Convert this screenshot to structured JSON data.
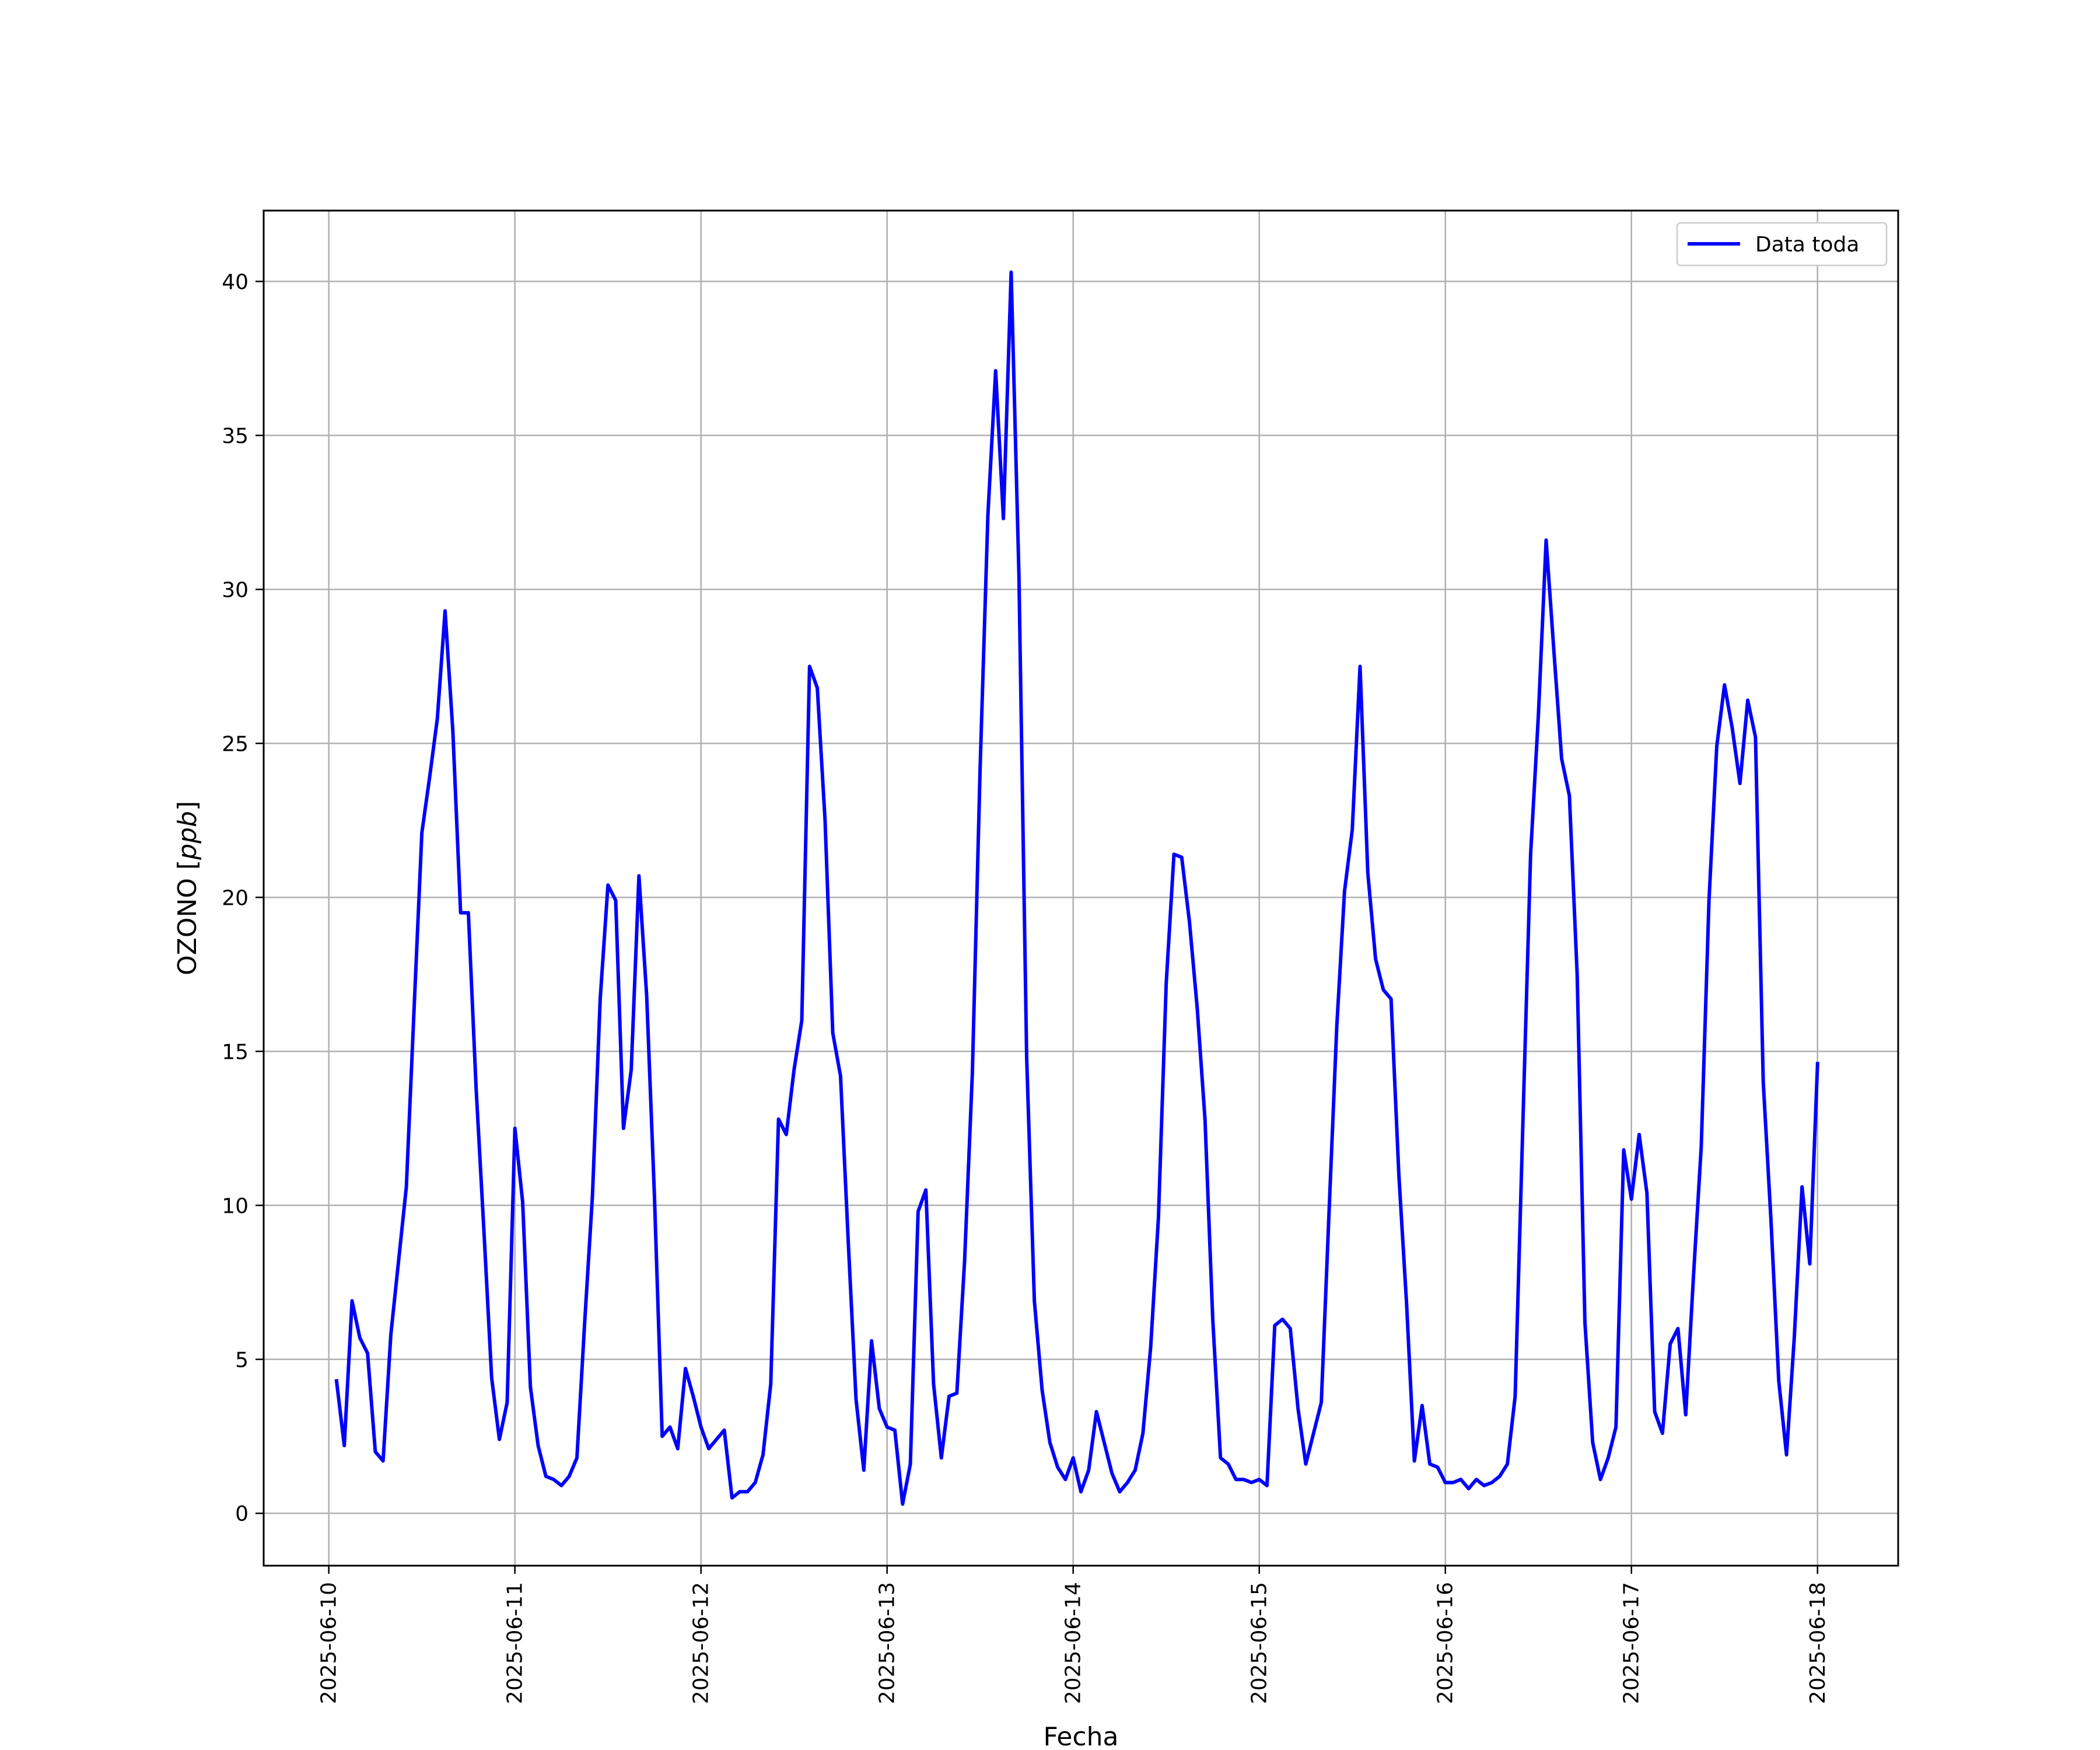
{
  "chart_data": {
    "type": "line",
    "title": "",
    "xlabel": "Fecha",
    "ylabel": "OZONO [ppb]",
    "ylabel_parts": {
      "main": "OZONO [",
      "unit": "ppb",
      "end": "]"
    },
    "x_tick_labels": [
      "2025-06-10",
      "2025-06-11",
      "2025-06-12",
      "2025-06-13",
      "2025-06-14",
      "2025-06-15",
      "2025-06-16",
      "2025-06-17",
      "2025-06-18"
    ],
    "y_ticks": [
      0,
      5,
      10,
      15,
      20,
      25,
      30,
      35,
      40
    ],
    "xlim": [
      "2025-06-09T15:36",
      "2025-06-18T10:24"
    ],
    "ylim": [
      -1.7,
      42.3
    ],
    "grid": true,
    "legend_position": "top-right",
    "series": [
      {
        "name": "Data toda",
        "color": "#0000ff",
        "x": [
          "2025-06-10T01:00",
          "2025-06-10T02:00",
          "2025-06-10T03:00",
          "2025-06-10T04:00",
          "2025-06-10T05:00",
          "2025-06-10T06:00",
          "2025-06-10T07:00",
          "2025-06-10T08:00",
          "2025-06-10T09:00",
          "2025-06-10T10:00",
          "2025-06-10T11:00",
          "2025-06-10T12:00",
          "2025-06-10T13:00",
          "2025-06-10T14:00",
          "2025-06-10T15:00",
          "2025-06-10T16:00",
          "2025-06-10T17:00",
          "2025-06-10T18:00",
          "2025-06-10T19:00",
          "2025-06-10T20:00",
          "2025-06-10T21:00",
          "2025-06-10T22:00",
          "2025-06-10T23:00",
          "2025-06-11T00:00",
          "2025-06-11T01:00",
          "2025-06-11T02:00",
          "2025-06-11T03:00",
          "2025-06-11T04:00",
          "2025-06-11T05:00",
          "2025-06-11T06:00",
          "2025-06-11T07:00",
          "2025-06-11T08:00",
          "2025-06-11T09:00",
          "2025-06-11T10:00",
          "2025-06-11T11:00",
          "2025-06-11T12:00",
          "2025-06-11T13:00",
          "2025-06-11T14:00",
          "2025-06-11T15:00",
          "2025-06-11T16:00",
          "2025-06-11T17:00",
          "2025-06-11T18:00",
          "2025-06-11T19:00",
          "2025-06-11T20:00",
          "2025-06-11T21:00",
          "2025-06-11T22:00",
          "2025-06-11T23:00",
          "2025-06-12T00:00",
          "2025-06-12T01:00",
          "2025-06-12T02:00",
          "2025-06-12T03:00",
          "2025-06-12T04:00",
          "2025-06-12T05:00",
          "2025-06-12T06:00",
          "2025-06-12T07:00",
          "2025-06-12T08:00",
          "2025-06-12T09:00",
          "2025-06-12T10:00",
          "2025-06-12T11:00",
          "2025-06-12T12:00",
          "2025-06-12T13:00",
          "2025-06-12T14:00",
          "2025-06-12T15:00",
          "2025-06-12T16:00",
          "2025-06-12T17:00",
          "2025-06-12T18:00",
          "2025-06-12T19:00",
          "2025-06-12T20:00",
          "2025-06-12T21:00",
          "2025-06-12T22:00",
          "2025-06-12T23:00",
          "2025-06-13T00:00",
          "2025-06-13T01:00",
          "2025-06-13T02:00",
          "2025-06-13T03:00",
          "2025-06-13T04:00",
          "2025-06-13T05:00",
          "2025-06-13T06:00",
          "2025-06-13T07:00",
          "2025-06-13T08:00",
          "2025-06-13T09:00",
          "2025-06-13T10:00",
          "2025-06-13T11:00",
          "2025-06-13T12:00",
          "2025-06-13T13:00",
          "2025-06-13T14:00",
          "2025-06-13T15:00",
          "2025-06-13T16:00",
          "2025-06-13T17:00",
          "2025-06-13T18:00",
          "2025-06-13T19:00",
          "2025-06-13T20:00",
          "2025-06-13T21:00",
          "2025-06-13T22:00",
          "2025-06-13T23:00",
          "2025-06-14T00:00",
          "2025-06-14T01:00",
          "2025-06-14T02:00",
          "2025-06-14T03:00",
          "2025-06-14T04:00",
          "2025-06-14T05:00",
          "2025-06-14T06:00",
          "2025-06-14T07:00",
          "2025-06-14T08:00",
          "2025-06-14T09:00",
          "2025-06-14T10:00",
          "2025-06-14T11:00",
          "2025-06-14T12:00",
          "2025-06-14T13:00",
          "2025-06-14T14:00",
          "2025-06-14T15:00",
          "2025-06-14T16:00",
          "2025-06-14T17:00",
          "2025-06-14T18:00",
          "2025-06-14T19:00",
          "2025-06-14T20:00",
          "2025-06-14T21:00",
          "2025-06-14T22:00",
          "2025-06-14T23:00",
          "2025-06-15T00:00",
          "2025-06-15T01:00",
          "2025-06-15T02:00",
          "2025-06-15T03:00",
          "2025-06-15T04:00",
          "2025-06-15T05:00",
          "2025-06-15T06:00",
          "2025-06-15T07:00",
          "2025-06-15T08:00",
          "2025-06-15T09:00",
          "2025-06-15T10:00",
          "2025-06-15T11:00",
          "2025-06-15T12:00",
          "2025-06-15T13:00",
          "2025-06-15T14:00",
          "2025-06-15T15:00",
          "2025-06-15T16:00",
          "2025-06-15T17:00",
          "2025-06-15T18:00",
          "2025-06-15T19:00",
          "2025-06-15T20:00",
          "2025-06-15T21:00",
          "2025-06-15T22:00",
          "2025-06-15T23:00",
          "2025-06-16T00:00",
          "2025-06-16T01:00",
          "2025-06-16T02:00",
          "2025-06-16T03:00",
          "2025-06-16T04:00",
          "2025-06-16T05:00",
          "2025-06-16T06:00",
          "2025-06-16T07:00",
          "2025-06-16T08:00",
          "2025-06-16T09:00",
          "2025-06-16T10:00",
          "2025-06-16T11:00",
          "2025-06-16T12:00",
          "2025-06-16T13:00",
          "2025-06-16T14:00",
          "2025-06-16T15:00",
          "2025-06-16T16:00",
          "2025-06-16T17:00",
          "2025-06-16T18:00",
          "2025-06-16T19:00",
          "2025-06-16T20:00",
          "2025-06-16T21:00",
          "2025-06-16T22:00",
          "2025-06-16T23:00",
          "2025-06-17T00:00",
          "2025-06-17T01:00",
          "2025-06-17T02:00",
          "2025-06-17T03:00",
          "2025-06-17T04:00",
          "2025-06-17T05:00",
          "2025-06-17T06:00",
          "2025-06-17T07:00",
          "2025-06-17T08:00",
          "2025-06-17T09:00",
          "2025-06-17T10:00",
          "2025-06-17T11:00",
          "2025-06-17T12:00",
          "2025-06-17T13:00",
          "2025-06-17T14:00",
          "2025-06-17T15:00",
          "2025-06-17T16:00",
          "2025-06-17T17:00",
          "2025-06-17T18:00",
          "2025-06-17T19:00",
          "2025-06-17T20:00",
          "2025-06-17T21:00",
          "2025-06-17T22:00",
          "2025-06-17T23:00",
          "2025-06-18T00:00"
        ],
        "y": [
          4.3,
          2.2,
          6.9,
          5.7,
          5.2,
          2.0,
          1.7,
          5.8,
          8.2,
          10.6,
          16.4,
          22.1,
          23.9,
          25.8,
          29.3,
          25.4,
          19.5,
          19.5,
          13.8,
          9.2,
          4.4,
          2.4,
          3.6,
          12.5,
          10.1,
          4.1,
          2.2,
          1.2,
          1.1,
          0.9,
          1.2,
          1.8,
          6.2,
          10.3,
          16.7,
          20.4,
          19.9,
          12.5,
          14.4,
          20.7,
          16.8,
          10.3,
          2.5,
          2.8,
          2.1,
          4.7,
          3.8,
          2.8,
          2.1,
          2.4,
          2.7,
          0.5,
          0.7,
          0.7,
          1.0,
          1.9,
          4.2,
          12.8,
          12.3,
          14.4,
          16.0,
          27.5,
          26.8,
          22.5,
          15.6,
          14.2,
          8.8,
          3.7,
          1.4,
          5.6,
          3.4,
          2.8,
          2.7,
          0.3,
          1.6,
          9.8,
          10.5,
          4.2,
          1.8,
          3.8,
          3.9,
          8.2,
          14.3,
          24.2,
          32.4,
          37.1,
          32.3,
          40.3,
          30.5,
          14.8,
          6.9,
          4.0,
          2.3,
          1.5,
          1.1,
          1.8,
          0.7,
          1.4,
          3.3,
          2.3,
          1.3,
          0.7,
          1.0,
          1.4,
          2.6,
          5.4,
          9.6,
          17.2,
          21.4,
          21.3,
          19.2,
          16.4,
          12.8,
          6.3,
          1.8,
          1.6,
          1.1,
          1.1,
          1.0,
          1.1,
          0.9,
          6.1,
          6.3,
          6.0,
          3.4,
          1.6,
          2.6,
          3.6,
          9.8,
          15.8,
          20.2,
          22.2,
          27.5,
          20.8,
          18.0,
          17.0,
          16.7,
          11.0,
          6.8,
          1.7,
          3.5,
          1.6,
          1.5,
          1.0,
          1.0,
          1.1,
          0.8,
          1.1,
          0.9,
          1.0,
          1.2,
          1.6,
          3.8,
          12.7,
          21.4,
          25.9,
          31.6,
          28.0,
          24.5,
          23.3,
          17.5,
          6.2,
          2.3,
          1.1,
          1.8,
          2.8,
          11.8,
          10.2,
          12.3,
          10.4,
          3.3,
          2.6,
          5.5,
          6.0,
          3.2,
          7.7,
          11.9,
          19.9,
          24.9,
          26.9,
          25.5,
          23.7,
          26.4,
          25.2,
          14.0,
          9.5,
          4.3,
          1.9,
          5.7,
          10.6,
          8.1,
          14.6
        ]
      }
    ]
  }
}
